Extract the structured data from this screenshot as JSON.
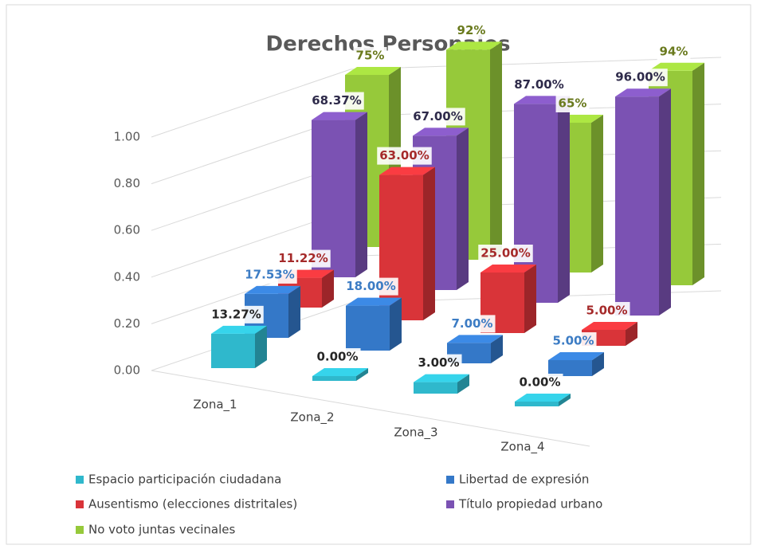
{
  "chart_data": {
    "type": "bar3d",
    "title": "Derechos Personales",
    "categories": [
      "Zona_1",
      "Zona_2",
      "Zona_3",
      "Zona_4"
    ],
    "ylim": [
      0,
      1
    ],
    "yticks": [
      {
        "value": 0,
        "label": "0.00"
      },
      {
        "value": 0.2,
        "label": "0.20"
      },
      {
        "value": 0.4,
        "label": "0.40"
      },
      {
        "value": 0.6,
        "label": "0.60"
      },
      {
        "value": 0.8,
        "label": "0.80"
      },
      {
        "value": 1,
        "label": "1.00"
      }
    ],
    "grid": true,
    "series": [
      {
        "name": "Espacio participación ciudadana",
        "color": "#2fb8cc",
        "values": [
          0.1327,
          0,
          0.03,
          0
        ],
        "value_labels": [
          "13.27%",
          "0.00%",
          "3.00%",
          "0.00%"
        ],
        "label_color": "#262626"
      },
      {
        "name": "Libertad de expresión",
        "color": "#3478c8",
        "values": [
          0.1753,
          0.18,
          0.07,
          0.05
        ],
        "value_labels": [
          "17.53%",
          "18.00%",
          "7.00%",
          "5.00%"
        ],
        "label_color": "#3c7cc4"
      },
      {
        "name": "Ausentismo (elecciones distritales)",
        "color": "#d93439",
        "values": [
          0.1122,
          0.63,
          0.25,
          0.05
        ],
        "value_labels": [
          "11.22%",
          "63.00%",
          "25.00%",
          "5.00%"
        ],
        "label_color": "#a52a2a"
      },
      {
        "name": "Título propiedad urbano",
        "color": "#7b52b3",
        "values": [
          0.6837,
          0.67,
          0.87,
          0.96
        ],
        "value_labels": [
          "68.37%",
          "67.00%",
          "87.00%",
          "96.00%"
        ],
        "label_color": "#2e2a4a"
      },
      {
        "name": "No voto juntas vecinales",
        "color": "#96c93a",
        "values": [
          0.75,
          0.92,
          0.65,
          0.94
        ],
        "value_labels": [
          "75%",
          "92%",
          "65%",
          "94%"
        ],
        "label_color": "#6a7a1e"
      }
    ]
  }
}
